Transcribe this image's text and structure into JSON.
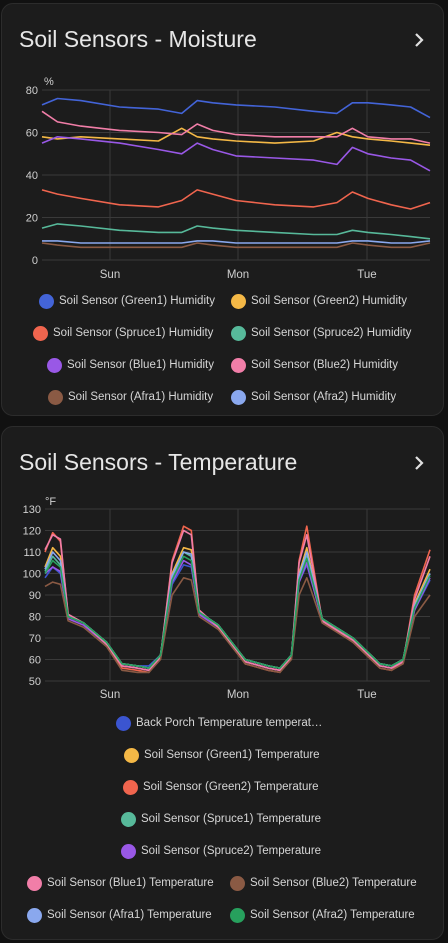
{
  "cards": [
    {
      "title": "Soil Sensors - Moisture",
      "chevron_icon": "chevron-right-icon",
      "unit": "%",
      "x_ticks": [
        "Sun",
        "Mon",
        "Tue"
      ],
      "legend": [
        {
          "label": "Soil Sensor (Green1) Humidity",
          "color": "#4364d8"
        },
        {
          "label": "Soil Sensor (Green2) Humidity",
          "color": "#f4b846"
        },
        {
          "label": "Soil Sensor (Spruce1) Humidity",
          "color": "#f0654e"
        },
        {
          "label": "Soil Sensor (Spruce2) Humidity",
          "color": "#57b99a"
        },
        {
          "label": "Soil Sensor (Blue1) Humidity",
          "color": "#9958e6"
        },
        {
          "label": "Soil Sensor (Blue2) Humidity",
          "color": "#f17ea8"
        },
        {
          "label": "Soil Sensor (Afra1) Humidity",
          "color": "#8a5a44"
        },
        {
          "label": "Soil Sensor (Afra2) Humidity",
          "color": "#8aa8ee"
        }
      ]
    },
    {
      "title": "Soil Sensors - Temperature",
      "chevron_icon": "chevron-right-icon",
      "unit": "°F",
      "x_ticks": [
        "Sun",
        "Mon",
        "Tue"
      ],
      "legend": [
        {
          "label": "Back Porch Temperature temperat…",
          "color": "#3b55d0"
        },
        {
          "label": "Soil Sensor (Green1) Temperature",
          "color": "#f4b846"
        },
        {
          "label": "Soil Sensor (Green2) Temperature",
          "color": "#f0654e"
        },
        {
          "label": "Soil Sensor (Spruce1) Temperature",
          "color": "#57b99a"
        },
        {
          "label": "Soil Sensor (Spruce2) Temperature",
          "color": "#9958e6"
        },
        {
          "label": "Soil Sensor (Blue1) Temperature",
          "color": "#f17ea8"
        },
        {
          "label": "Soil Sensor (Blue2) Temperature",
          "color": "#8a5a44"
        },
        {
          "label": "Soil Sensor (Afra1) Temperature",
          "color": "#8aa8ee"
        },
        {
          "label": "Soil Sensor (Afra2) Temperature",
          "color": "#27a05d"
        }
      ]
    }
  ],
  "chart_data": [
    {
      "type": "line",
      "title": "Soil Sensors - Moisture",
      "ylabel": "%",
      "ylim": [
        0,
        80
      ],
      "yticks": [
        0,
        20,
        40,
        60,
        80
      ],
      "x_ticks": [
        "Sun",
        "Mon",
        "Tue"
      ],
      "grid": true,
      "legend": "bottom",
      "x": [
        0,
        0.04,
        0.1,
        0.2,
        0.3,
        0.36,
        0.4,
        0.44,
        0.5,
        0.6,
        0.7,
        0.76,
        0.8,
        0.84,
        0.9,
        0.95,
        1.0
      ],
      "series": [
        {
          "name": "Soil Sensor (Green1) Humidity",
          "color": "#4364d8",
          "values": [
            73,
            76,
            75,
            72,
            71,
            69,
            75,
            74,
            73,
            72,
            70,
            69,
            74,
            74,
            73,
            72,
            67
          ]
        },
        {
          "name": "Soil Sensor (Green2) Humidity",
          "color": "#f4b846",
          "values": [
            58,
            57,
            58,
            57,
            56,
            62,
            58,
            57,
            56,
            55,
            56,
            60,
            58,
            57,
            56,
            55,
            54
          ]
        },
        {
          "name": "Soil Sensor (Spruce1) Humidity",
          "color": "#f0654e",
          "values": [
            33,
            31,
            29,
            26,
            25,
            28,
            33,
            31,
            28,
            26,
            25,
            27,
            32,
            29,
            26,
            24,
            27
          ]
        },
        {
          "name": "Soil Sensor (Spruce2) Humidity",
          "color": "#57b99a",
          "values": [
            15,
            17,
            16,
            14,
            13,
            13,
            16,
            15,
            14,
            13,
            12,
            12,
            14,
            13,
            12,
            11,
            10
          ]
        },
        {
          "name": "Soil Sensor (Blue1) Humidity",
          "color": "#9958e6",
          "values": [
            55,
            58,
            57,
            55,
            52,
            50,
            55,
            52,
            49,
            48,
            47,
            45,
            53,
            50,
            48,
            47,
            42
          ]
        },
        {
          "name": "Soil Sensor (Blue2) Humidity",
          "color": "#f17ea8",
          "values": [
            70,
            65,
            63,
            61,
            60,
            59,
            64,
            61,
            59,
            58,
            58,
            58,
            62,
            58,
            57,
            57,
            55
          ]
        },
        {
          "name": "Soil Sensor (Afra1) Humidity",
          "color": "#8a5a44",
          "values": [
            8,
            7,
            6,
            6,
            6,
            6,
            8,
            7,
            6,
            6,
            6,
            6,
            8,
            7,
            6,
            6,
            8
          ]
        },
        {
          "name": "Soil Sensor (Afra2) Humidity",
          "color": "#8aa8ee",
          "values": [
            9,
            9,
            8,
            8,
            8,
            8,
            9,
            9,
            8,
            8,
            8,
            8,
            9,
            9,
            8,
            8,
            9
          ]
        }
      ]
    },
    {
      "type": "line",
      "title": "Soil Sensors - Temperature",
      "ylabel": "°F",
      "ylim": [
        50,
        130
      ],
      "yticks": [
        50,
        60,
        70,
        80,
        90,
        100,
        110,
        120,
        130
      ],
      "x_ticks": [
        "Sun",
        "Mon",
        "Tue"
      ],
      "grid": true,
      "legend": "bottom",
      "x": [
        0,
        0.02,
        0.04,
        0.06,
        0.1,
        0.16,
        0.2,
        0.24,
        0.27,
        0.3,
        0.33,
        0.36,
        0.38,
        0.4,
        0.45,
        0.52,
        0.58,
        0.61,
        0.64,
        0.66,
        0.68,
        0.72,
        0.8,
        0.87,
        0.9,
        0.93,
        0.96,
        1.0
      ],
      "series": [
        {
          "name": "Back Porch Temperature temperat…",
          "color": "#3b55d0",
          "values": [
            98,
            103,
            100,
            80,
            77,
            68,
            58,
            57,
            57,
            62,
            95,
            104,
            103,
            82,
            76,
            60,
            57,
            56,
            62,
            96,
            104,
            79,
            70,
            58,
            57,
            60,
            83,
            97
          ]
        },
        {
          "name": "Soil Sensor (Green1) Temperature",
          "color": "#f4b846",
          "values": [
            103,
            112,
            108,
            80,
            77,
            68,
            58,
            57,
            56,
            62,
            100,
            112,
            111,
            82,
            76,
            60,
            57,
            56,
            62,
            100,
            112,
            79,
            70,
            58,
            57,
            60,
            86,
            102
          ]
        },
        {
          "name": "Soil Sensor (Green2) Temperature",
          "color": "#f0654e",
          "values": [
            110,
            119,
            115,
            81,
            77,
            67,
            56,
            55,
            54,
            61,
            106,
            122,
            120,
            83,
            75,
            58,
            55,
            54,
            61,
            106,
            122,
            78,
            68,
            56,
            55,
            59,
            90,
            111
          ]
        },
        {
          "name": "Soil Sensor (Spruce1) Temperature",
          "color": "#57b99a",
          "values": [
            101,
            108,
            104,
            80,
            77,
            68,
            58,
            57,
            56,
            62,
            98,
            110,
            108,
            82,
            76,
            60,
            57,
            56,
            62,
            98,
            108,
            79,
            70,
            58,
            57,
            60,
            85,
            100
          ]
        },
        {
          "name": "Soil Sensor (Spruce2) Temperature",
          "color": "#9958e6",
          "values": [
            100,
            103,
            101,
            79,
            76,
            67,
            57,
            56,
            55,
            61,
            96,
            106,
            104,
            81,
            75,
            59,
            56,
            55,
            61,
            96,
            105,
            78,
            69,
            57,
            56,
            59,
            83,
            98
          ]
        },
        {
          "name": "Soil Sensor (Blue1) Temperature",
          "color": "#f17ea8",
          "values": [
            111,
            118,
            116,
            81,
            77,
            67,
            57,
            56,
            55,
            61,
            105,
            120,
            118,
            83,
            75,
            59,
            56,
            55,
            61,
            105,
            118,
            78,
            69,
            57,
            56,
            59,
            88,
            108
          ]
        },
        {
          "name": "Soil Sensor (Blue2) Temperature",
          "color": "#8a5a44",
          "values": [
            94,
            96,
            95,
            78,
            75,
            66,
            55,
            54,
            54,
            60,
            90,
            98,
            97,
            80,
            74,
            58,
            55,
            54,
            60,
            90,
            98,
            77,
            68,
            56,
            55,
            58,
            80,
            90
          ]
        },
        {
          "name": "Soil Sensor (Afra1) Temperature",
          "color": "#8aa8ee",
          "values": [
            102,
            110,
            106,
            80,
            77,
            68,
            58,
            57,
            56,
            62,
            99,
            110,
            109,
            82,
            76,
            60,
            57,
            56,
            62,
            99,
            110,
            79,
            70,
            58,
            57,
            60,
            85,
            100
          ]
        },
        {
          "name": "Soil Sensor (Afra2) Temperature",
          "color": "#27a05d",
          "values": [
            100,
            106,
            103,
            80,
            77,
            68,
            58,
            57,
            56,
            62,
            97,
            108,
            106,
            82,
            76,
            60,
            57,
            56,
            62,
            97,
            107,
            79,
            70,
            58,
            57,
            60,
            84,
            99
          ]
        }
      ]
    }
  ]
}
